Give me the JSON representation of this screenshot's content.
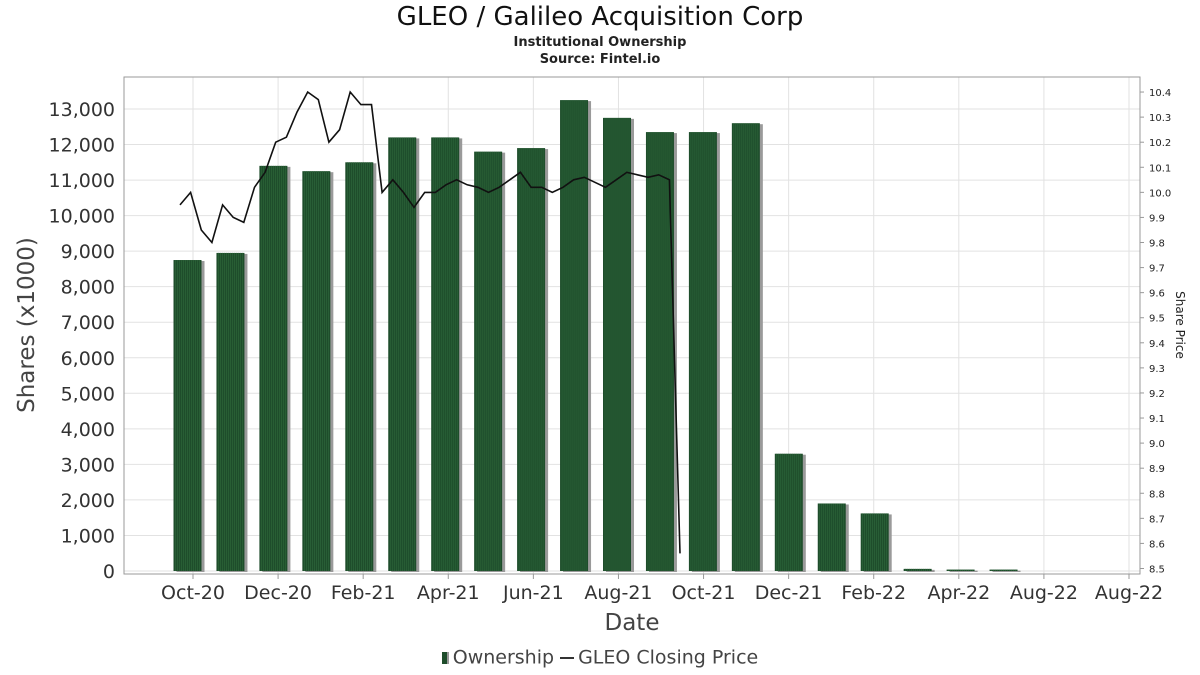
{
  "header": {
    "title": "GLEO / Galileo Acquisition Corp",
    "subtitle": "Institutional Ownership",
    "source": "Source: Fintel.io"
  },
  "legend": {
    "ownership": "Ownership",
    "price": "GLEO Closing Price"
  },
  "colors": {
    "bar": "#1e4d2b",
    "bar_shadow": "#9a9a9a",
    "price_line": "#111111",
    "grid": "#e2e2e2"
  },
  "chart_data": {
    "type": "bar",
    "xlabel": "Date",
    "ylabel": "Shares (x1000)",
    "y2label": "Share Price",
    "ylim": [
      0,
      13900
    ],
    "y_ticks": [
      "0",
      "1,000",
      "2,000",
      "3,000",
      "4,000",
      "5,000",
      "6,000",
      "7,000",
      "8,000",
      "9,000",
      "10,000",
      "11,000",
      "12,000",
      "13,000"
    ],
    "y2lim": [
      8.49,
      10.46
    ],
    "y2_ticks": [
      "8.5",
      "8.6",
      "8.7",
      "8.8",
      "8.9",
      "9.0",
      "9.1",
      "9.2",
      "9.3",
      "9.4",
      "9.5",
      "9.6",
      "9.7",
      "9.8",
      "9.9",
      "10.0",
      "10.1",
      "10.2",
      "10.3",
      "10.4"
    ],
    "x_ticks": [
      "Oct-20",
      "Dec-20",
      "Feb-21",
      "Apr-21",
      "Jun-21",
      "Aug-21",
      "Oct-21",
      "Dec-21",
      "Feb-22",
      "Apr-22",
      "Aug-22",
      "Aug-22"
    ],
    "grid": true,
    "legend_position": "bottom",
    "series": [
      {
        "name": "Ownership",
        "type": "bar",
        "axis": "left",
        "values": [
          8750,
          8950,
          11400,
          11250,
          11500,
          12200,
          12200,
          11800,
          11900,
          13250,
          12750,
          12350,
          12350,
          12600,
          3300,
          1900,
          1620,
          60,
          40,
          40
        ]
      },
      {
        "name": "GLEO Closing Price",
        "type": "line",
        "axis": "right",
        "values": [
          9.95,
          10.0,
          9.85,
          9.8,
          9.95,
          9.9,
          9.88,
          10.02,
          10.08,
          10.2,
          10.22,
          10.32,
          10.4,
          10.37,
          10.2,
          10.25,
          10.4,
          10.35,
          10.35,
          10.0,
          10.05,
          10.0,
          9.94,
          10.0,
          10.0,
          10.03,
          10.05,
          10.03,
          10.02,
          10.0,
          10.02,
          10.05,
          10.08,
          10.02,
          10.02,
          10.0,
          10.02,
          10.05,
          10.06,
          10.04,
          10.02,
          10.05,
          10.08,
          10.07,
          10.06,
          10.07,
          10.05,
          8.56
        ]
      }
    ]
  }
}
